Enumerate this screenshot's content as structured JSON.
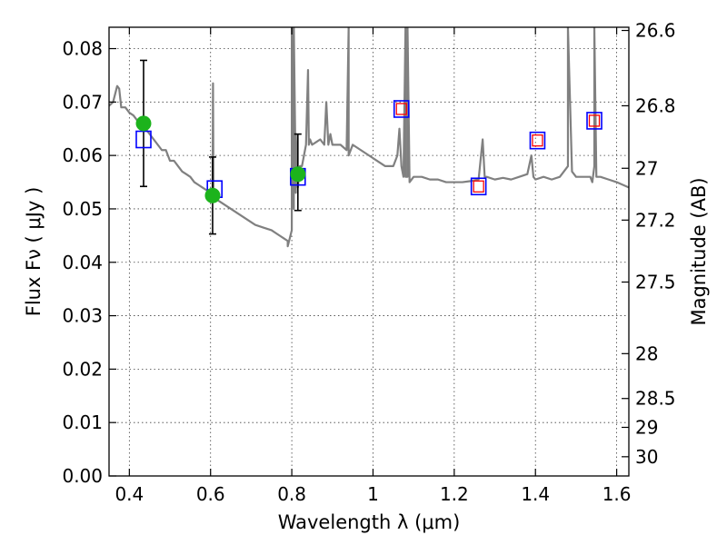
{
  "chart_data": {
    "type": "scatter",
    "xlabel": "Wavelength  λ (μm)",
    "ylabel": "Flux  Fν  ( μJy )",
    "y2label": "Magnitude (AB)",
    "xlim": [
      0.35,
      1.63
    ],
    "ylim": [
      0.0,
      0.084
    ],
    "grid": true,
    "x_ticks": [
      0.4,
      0.6,
      0.8,
      1.0,
      1.2,
      1.4,
      1.6
    ],
    "x_tick_labels": [
      "0.4",
      "0.6",
      "0.8",
      "1",
      "1.2",
      "1.4",
      "1.6"
    ],
    "y_ticks": [
      0.0,
      0.01,
      0.02,
      0.03,
      0.04,
      0.05,
      0.06,
      0.07,
      0.08
    ],
    "y_tick_labels": [
      "0.00",
      "0.01",
      "0.02",
      "0.03",
      "0.04",
      "0.05",
      "0.06",
      "0.07",
      "0.08"
    ],
    "y2_ticks": [
      {
        "label": "26.6",
        "flux": 0.0834
      },
      {
        "label": "26.8",
        "flux": 0.0693
      },
      {
        "label": "27",
        "flux": 0.0576
      },
      {
        "label": "27.2",
        "flux": 0.0479
      },
      {
        "label": "27.5",
        "flux": 0.0363
      },
      {
        "label": "28",
        "flux": 0.0229
      },
      {
        "label": "28.5",
        "flux": 0.0145
      },
      {
        "label": "29",
        "flux": 0.0091
      },
      {
        "label": "30",
        "flux": 0.0036
      }
    ],
    "series": [
      {
        "kind": "line",
        "color": "#808080",
        "x": [
          0.35,
          0.36,
          0.37,
          0.375,
          0.38,
          0.39,
          0.4,
          0.41,
          0.42,
          0.43,
          0.44,
          0.45,
          0.46,
          0.47,
          0.48,
          0.49,
          0.5,
          0.51,
          0.52,
          0.53,
          0.54,
          0.55,
          0.56,
          0.57,
          0.58,
          0.59,
          0.6,
          0.605,
          0.606,
          0.607,
          0.608,
          0.61,
          0.63,
          0.65,
          0.67,
          0.69,
          0.71,
          0.73,
          0.75,
          0.77,
          0.78,
          0.79,
          0.79,
          0.8,
          0.8,
          0.805,
          0.805,
          0.81,
          0.81,
          0.815,
          0.82,
          0.825,
          0.83,
          0.835,
          0.84,
          0.842,
          0.845,
          0.85,
          0.86,
          0.87,
          0.88,
          0.885,
          0.89,
          0.895,
          0.9,
          0.92,
          0.935,
          0.94,
          0.94,
          0.945,
          0.95,
          0.97,
          0.99,
          1.01,
          1.03,
          1.05,
          1.06,
          1.065,
          1.07,
          1.075,
          1.08,
          1.08,
          1.085,
          1.085,
          1.09,
          1.1,
          1.12,
          1.14,
          1.16,
          1.18,
          1.2,
          1.22,
          1.24,
          1.26,
          1.27,
          1.275,
          1.28,
          1.3,
          1.32,
          1.34,
          1.36,
          1.38,
          1.39,
          1.395,
          1.4,
          1.42,
          1.44,
          1.46,
          1.47,
          1.48,
          1.48,
          1.49,
          1.5,
          1.52,
          1.535,
          1.54,
          1.545,
          1.545,
          1.55,
          1.56,
          1.58,
          1.6,
          1.63
        ],
        "y": [
          0.0693,
          0.07,
          0.073,
          0.0725,
          0.069,
          0.069,
          0.068,
          0.0675,
          0.0665,
          0.0655,
          0.065,
          0.064,
          0.063,
          0.062,
          0.061,
          0.061,
          0.059,
          0.059,
          0.058,
          0.057,
          0.0565,
          0.056,
          0.055,
          0.0545,
          0.054,
          0.0535,
          0.053,
          0.054,
          0.0735,
          0.054,
          0.052,
          0.052,
          0.051,
          0.05,
          0.049,
          0.048,
          0.047,
          0.0465,
          0.046,
          0.045,
          0.0445,
          0.044,
          0.043,
          0.046,
          0.084,
          0.05,
          0.084,
          0.053,
          0.064,
          0.054,
          0.058,
          0.058,
          0.06,
          0.062,
          0.076,
          0.062,
          0.063,
          0.062,
          0.0625,
          0.063,
          0.062,
          0.07,
          0.062,
          0.064,
          0.062,
          0.062,
          0.061,
          0.084,
          0.06,
          0.061,
          0.062,
          0.061,
          0.06,
          0.059,
          0.058,
          0.058,
          0.06,
          0.065,
          0.058,
          0.056,
          0.084,
          0.056,
          0.056,
          0.084,
          0.055,
          0.056,
          0.056,
          0.0555,
          0.0555,
          0.055,
          0.055,
          0.055,
          0.0552,
          0.0555,
          0.063,
          0.056,
          0.056,
          0.0555,
          0.0558,
          0.0555,
          0.056,
          0.0565,
          0.06,
          0.056,
          0.0555,
          0.056,
          0.0555,
          0.056,
          0.057,
          0.058,
          0.084,
          0.057,
          0.056,
          0.056,
          0.056,
          0.055,
          0.058,
          0.084,
          0.056,
          0.056,
          0.0555,
          0.055,
          0.054
        ]
      },
      {
        "kind": "errorbar-points",
        "color": "#1cb31c",
        "x": [
          0.435,
          0.605,
          0.815
        ],
        "y": [
          0.066,
          0.0525,
          0.0565
        ],
        "yerr_low": [
          0.0118,
          0.0072,
          0.0068
        ],
        "yerr_high": [
          0.0118,
          0.0072,
          0.0075
        ]
      },
      {
        "kind": "blue-squares",
        "color": "#0000ff",
        "x": [
          0.435,
          0.61,
          0.815,
          1.07,
          1.26,
          1.405,
          1.545
        ],
        "y": [
          0.063,
          0.0537,
          0.056,
          0.0687,
          0.0542,
          0.0628,
          0.0665
        ]
      },
      {
        "kind": "red-squares",
        "color": "#ff0000",
        "x": [
          1.07,
          1.26,
          1.405,
          1.545
        ],
        "y": [
          0.0687,
          0.0542,
          0.0628,
          0.0665
        ]
      }
    ]
  }
}
